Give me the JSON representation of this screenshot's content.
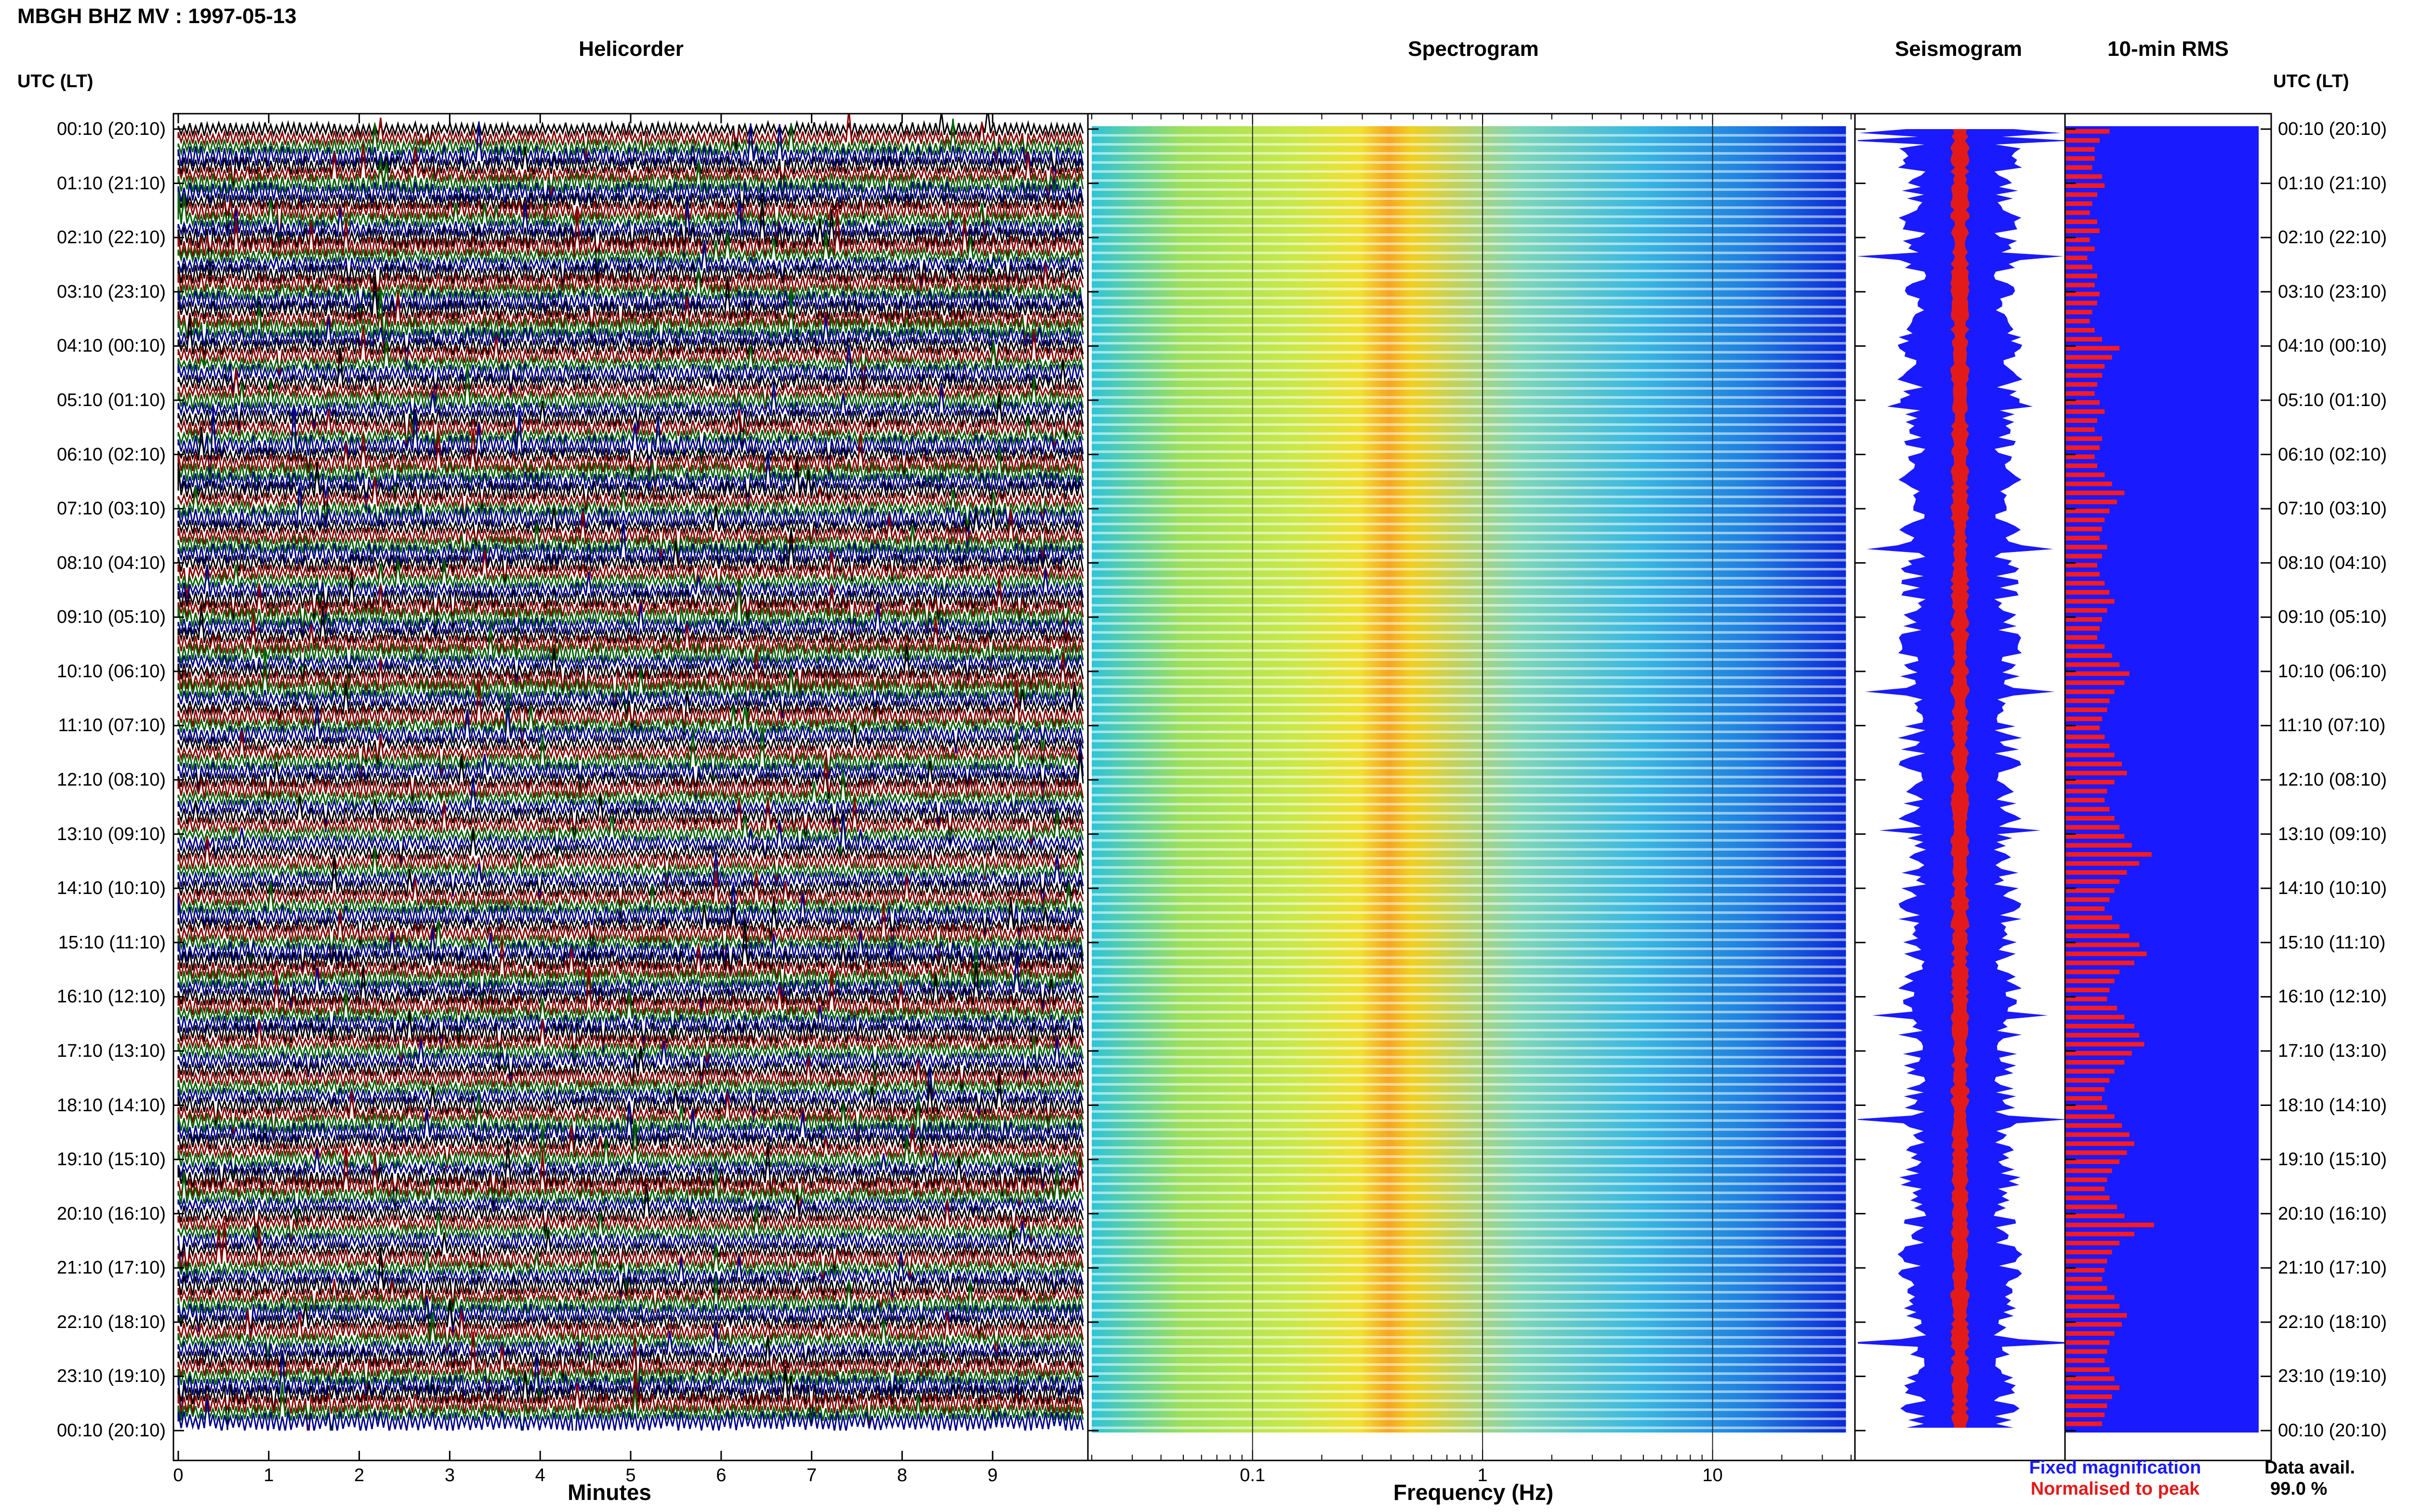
{
  "title": "MBGH BHZ MV : 1997-05-13",
  "utc_label": "UTC (LT)",
  "panels": {
    "helicorder": "Helicorder",
    "spectrogram": "Spectrogram",
    "seismogram": "Seismogram",
    "rms": "10-min RMS"
  },
  "x_labels": {
    "helicorder": "Minutes",
    "spectrogram": "Frequency (Hz)"
  },
  "legend": {
    "fixed": "Fixed magnification",
    "normalised": "Normalised to peak",
    "fixed_color": "#1a1aff",
    "normalised_color": "#e31a1a"
  },
  "availability": {
    "label": "Data avail.",
    "value": "99.0 %"
  },
  "colors": {
    "trace_cycle": [
      "#000000",
      "#8b0000",
      "#006400",
      "#00008b"
    ],
    "rms_fill": "#1a1aff",
    "rms_bar": "#ff1a1a"
  },
  "chart_data": [
    {
      "type": "line",
      "panel": "Helicorder",
      "xlabel": "Minutes",
      "x_ticks": [
        "0",
        "1",
        "2",
        "3",
        "4",
        "5",
        "6",
        "7",
        "8",
        "9"
      ],
      "xlim": [
        0,
        10
      ],
      "row_length_minutes": 10,
      "rows_per_day": 144,
      "y_tick_labels": [
        "00:10 (20:10)",
        "01:10 (21:10)",
        "02:10 (22:10)",
        "03:10 (23:10)",
        "04:10 (00:10)",
        "05:10 (01:10)",
        "06:10 (02:10)",
        "07:10 (03:10)",
        "08:10 (04:10)",
        "09:10 (05:10)",
        "10:10 (06:10)",
        "11:10 (07:10)",
        "12:10 (08:10)",
        "13:10 (09:10)",
        "14:10 (10:10)",
        "15:10 (11:10)",
        "16:10 (12:10)",
        "17:10 (13:10)",
        "18:10 (14:10)",
        "19:10 (15:10)",
        "20:10 (16:10)",
        "21:10 (17:10)",
        "22:10 (18:10)",
        "23:10 (19:10)",
        "00:10 (20:10)"
      ]
    },
    {
      "type": "heatmap",
      "panel": "Spectrogram",
      "xlabel": "Frequency (Hz)",
      "x_scale": "log",
      "x_ticks": [
        "0.1",
        "1",
        "10"
      ],
      "xlim": [
        0.02,
        40
      ],
      "peak_band_hz": [
        0.3,
        0.5
      ],
      "note_color_scale": "blue-cyan-yellow-red"
    },
    {
      "type": "line",
      "panel": "Seismogram",
      "series": [
        {
          "name": "Fixed magnification",
          "color": "#1a1aff"
        },
        {
          "name": "Normalised to peak",
          "color": "#e31a1a"
        }
      ]
    },
    {
      "type": "bar",
      "panel": "10-min RMS",
      "orientation": "horizontal",
      "relative_values": [
        0.18,
        0.14,
        0.12,
        0.12,
        0.11,
        0.15,
        0.16,
        0.13,
        0.11,
        0.1,
        0.13,
        0.14,
        0.1,
        0.12,
        0.09,
        0.11,
        0.13,
        0.12,
        0.14,
        0.13,
        0.11,
        0.1,
        0.12,
        0.15,
        0.22,
        0.19,
        0.16,
        0.15,
        0.13,
        0.12,
        0.14,
        0.16,
        0.13,
        0.12,
        0.15,
        0.14,
        0.12,
        0.13,
        0.16,
        0.19,
        0.24,
        0.21,
        0.18,
        0.16,
        0.15,
        0.14,
        0.17,
        0.15,
        0.13,
        0.14,
        0.16,
        0.18,
        0.2,
        0.17,
        0.15,
        0.14,
        0.13,
        0.16,
        0.19,
        0.22,
        0.26,
        0.24,
        0.2,
        0.18,
        0.17,
        0.15,
        0.14,
        0.16,
        0.18,
        0.2,
        0.23,
        0.25,
        0.2,
        0.17,
        0.16,
        0.18,
        0.2,
        0.22,
        0.24,
        0.27,
        0.35,
        0.3,
        0.25,
        0.22,
        0.2,
        0.18,
        0.16,
        0.19,
        0.22,
        0.26,
        0.3,
        0.33,
        0.28,
        0.22,
        0.2,
        0.18,
        0.17,
        0.21,
        0.24,
        0.28,
        0.3,
        0.32,
        0.27,
        0.24,
        0.2,
        0.18,
        0.16,
        0.15,
        0.17,
        0.2,
        0.23,
        0.26,
        0.28,
        0.25,
        0.22,
        0.19,
        0.17,
        0.16,
        0.18,
        0.21,
        0.24,
        0.36,
        0.28,
        0.22,
        0.19,
        0.17,
        0.16,
        0.15,
        0.17,
        0.2,
        0.22,
        0.25,
        0.23,
        0.2,
        0.18,
        0.17,
        0.16,
        0.18,
        0.2,
        0.22,
        0.19,
        0.17,
        0.16,
        0.15
      ]
    }
  ]
}
